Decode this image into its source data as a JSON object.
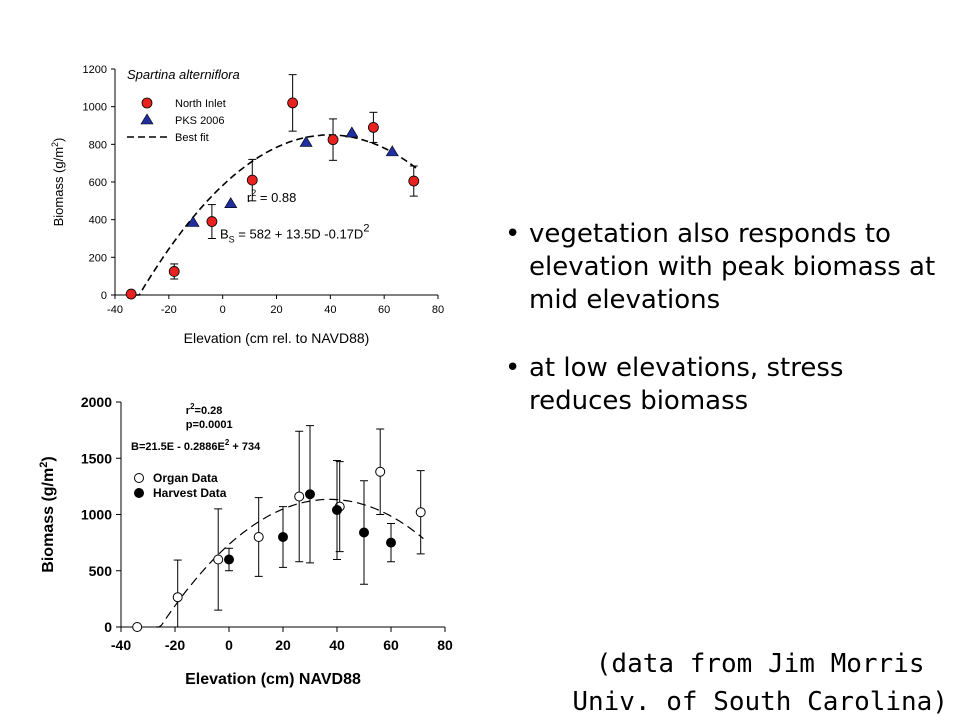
{
  "bullets": [
    {
      "text": "vegetation also responds to elevation with peak biomass at mid elevations"
    },
    {
      "text": "at low elevations, stress reduces biomass"
    }
  ],
  "credit": {
    "line1": "(data from Jim Morris",
    "line2": "Univ. of South Carolina)"
  },
  "chart_data": [
    {
      "type": "scatter",
      "title": "Spartina alterniflora",
      "xlabel": "Elevation (cm rel. to NAVD88)",
      "ylabel": "Biomass (g/m2)",
      "xlim": [
        -40,
        80
      ],
      "ylim": [
        0,
        1200
      ],
      "xticks": [
        -40,
        -20,
        0,
        20,
        40,
        60,
        80
      ],
      "yticks": [
        0,
        200,
        400,
        600,
        800,
        1000,
        1200
      ],
      "legend": "top-left",
      "series": [
        {
          "name": "North Inlet",
          "marker": "circle",
          "color": "#e8231f",
          "points": [
            {
              "x": -34,
              "y": 5,
              "err": 0
            },
            {
              "x": -18,
              "y": 125,
              "err": 40
            },
            {
              "x": -4,
              "y": 390,
              "err": 90
            },
            {
              "x": 11,
              "y": 610,
              "err": 110
            },
            {
              "x": 26,
              "y": 1020,
              "err": 150
            },
            {
              "x": 41,
              "y": 825,
              "err": 110
            },
            {
              "x": 56,
              "y": 890,
              "err": 80
            },
            {
              "x": 71,
              "y": 605,
              "err": 80
            }
          ]
        },
        {
          "name": "PKS 2006",
          "marker": "triangle",
          "color": "#1f2fa0",
          "points": [
            {
              "x": -11,
              "y": 385
            },
            {
              "x": 3,
              "y": 485
            },
            {
              "x": 31,
              "y": 810
            },
            {
              "x": 48,
              "y": 860
            },
            {
              "x": 63,
              "y": 760
            }
          ]
        },
        {
          "name": "Best fit",
          "type": "curve",
          "equation": "BS = 582 + 13.5D -0.17D2",
          "xrange": [
            -33,
            72
          ]
        }
      ],
      "annotations": {
        "r2": "r2 = 0.88",
        "equation_prefix": "B",
        "equation_sub": "S",
        "equation_body": " = 582 + 13.5D -0.17D",
        "equation_sup": "2"
      }
    },
    {
      "type": "scatter",
      "xlabel": "Elevation (cm) NAVD88",
      "ylabel": "Biomass (g/m2)",
      "xlim": [
        -40,
        80
      ],
      "ylim": [
        0,
        2000
      ],
      "xticks": [
        -40,
        -20,
        0,
        20,
        40,
        60,
        80
      ],
      "yticks": [
        0,
        500,
        1000,
        1500,
        2000
      ],
      "legend": "top-left",
      "series": [
        {
          "name": "Organ Data",
          "marker": "open-circle",
          "points": [
            {
              "x": -34,
              "y": 0,
              "err": 0
            },
            {
              "x": -19,
              "y": 265,
              "err": 330
            },
            {
              "x": -4,
              "y": 600,
              "err": 450
            },
            {
              "x": 11,
              "y": 800,
              "err": 350
            },
            {
              "x": 26,
              "y": 1160,
              "err": 580
            },
            {
              "x": 41,
              "y": 1070,
              "err": 400
            },
            {
              "x": 56,
              "y": 1380,
              "err": 380
            },
            {
              "x": 71,
              "y": 1020,
              "err": 370
            }
          ]
        },
        {
          "name": "Harvest Data",
          "marker": "filled-circle",
          "points": [
            {
              "x": 0,
              "y": 600,
              "err": 100
            },
            {
              "x": 20,
              "y": 800,
              "err": 270
            },
            {
              "x": 30,
              "y": 1180,
              "err": 610
            },
            {
              "x": 40,
              "y": 1040,
              "err": 440
            },
            {
              "x": 50,
              "y": 840,
              "err": 460
            },
            {
              "x": 60,
              "y": 750,
              "err": 170
            }
          ]
        }
      ],
      "annotations": {
        "r2": "r2=0.28",
        "p": "p=0.0001",
        "equation": "B=21.5E - 0.2886E2 + 734"
      }
    }
  ]
}
